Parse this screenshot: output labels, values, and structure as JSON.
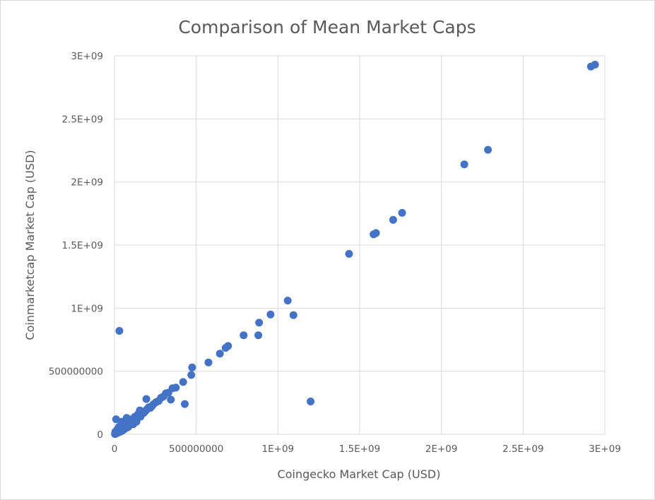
{
  "chart_data": {
    "type": "scatter",
    "title": "Comparison of Mean Market Caps",
    "xlabel": "Coingecko Market Cap (USD)",
    "ylabel": "Coinmarketcap Market Cap (USD)",
    "xlim": [
      0,
      3000000000
    ],
    "ylim": [
      0,
      3000000000
    ],
    "x_ticks": [
      {
        "value": 0,
        "label": "0"
      },
      {
        "value": 500000000,
        "label": "500000000"
      },
      {
        "value": 1000000000,
        "label": "1E+09"
      },
      {
        "value": 1500000000,
        "label": "1.5E+09"
      },
      {
        "value": 2000000000,
        "label": "2E+09"
      },
      {
        "value": 2500000000,
        "label": "2.5E+09"
      },
      {
        "value": 3000000000,
        "label": "3E+09"
      }
    ],
    "y_ticks": [
      {
        "value": 0,
        "label": "0"
      },
      {
        "value": 500000000,
        "label": "500000000"
      },
      {
        "value": 1000000000,
        "label": "1E+09"
      },
      {
        "value": 1500000000,
        "label": "1.5E+09"
      },
      {
        "value": 2000000000,
        "label": "2E+09"
      },
      {
        "value": 2500000000,
        "label": "2.5E+09"
      },
      {
        "value": 3000000000,
        "label": "3E+09"
      }
    ],
    "grid": true,
    "legend": "none",
    "marker_color": "#4472c4",
    "series": [
      {
        "points": [
          [
            2940000000,
            2930000000
          ],
          [
            2915000000,
            2915000000
          ],
          [
            2285000000,
            2255000000
          ],
          [
            2140000000,
            2140000000
          ],
          [
            1760000000,
            1755000000
          ],
          [
            1705000000,
            1700000000
          ],
          [
            1600000000,
            1595000000
          ],
          [
            1585000000,
            1585000000
          ],
          [
            1435000000,
            1430000000
          ],
          [
            1060000000,
            1060000000
          ],
          [
            955000000,
            950000000
          ],
          [
            1095000000,
            945000000
          ],
          [
            885000000,
            885000000
          ],
          [
            880000000,
            785000000
          ],
          [
            790000000,
            785000000
          ],
          [
            695000000,
            700000000
          ],
          [
            680000000,
            685000000
          ],
          [
            645000000,
            640000000
          ],
          [
            575000000,
            570000000
          ],
          [
            475000000,
            530000000
          ],
          [
            470000000,
            470000000
          ],
          [
            420000000,
            415000000
          ],
          [
            1200000000,
            260000000
          ],
          [
            430000000,
            240000000
          ],
          [
            30000000,
            820000000
          ],
          [
            375000000,
            370000000
          ],
          [
            355000000,
            365000000
          ],
          [
            345000000,
            275000000
          ],
          [
            330000000,
            330000000
          ],
          [
            315000000,
            325000000
          ],
          [
            300000000,
            300000000
          ],
          [
            285000000,
            290000000
          ],
          [
            270000000,
            265000000
          ],
          [
            255000000,
            255000000
          ],
          [
            240000000,
            240000000
          ],
          [
            230000000,
            225000000
          ],
          [
            195000000,
            280000000
          ],
          [
            200000000,
            200000000
          ],
          [
            190000000,
            185000000
          ],
          [
            175000000,
            180000000
          ],
          [
            165000000,
            170000000
          ],
          [
            155000000,
            190000000
          ],
          [
            150000000,
            150000000
          ],
          [
            140000000,
            130000000
          ],
          [
            130000000,
            120000000
          ],
          [
            120000000,
            110000000
          ],
          [
            110000000,
            100000000
          ],
          [
            100000000,
            90000000
          ],
          [
            95000000,
            75000000
          ],
          [
            85000000,
            60000000
          ],
          [
            75000000,
            130000000
          ],
          [
            70000000,
            110000000
          ],
          [
            65000000,
            50000000
          ],
          [
            60000000,
            40000000
          ],
          [
            55000000,
            80000000
          ],
          [
            50000000,
            30000000
          ],
          [
            45000000,
            100000000
          ],
          [
            40000000,
            60000000
          ],
          [
            35000000,
            20000000
          ],
          [
            30000000,
            45000000
          ],
          [
            25000000,
            15000000
          ],
          [
            20000000,
            30000000
          ],
          [
            15000000,
            10000000
          ],
          [
            10000000,
            120000000
          ],
          [
            8000000,
            5000000
          ],
          [
            5000000,
            20000000
          ],
          [
            3000000,
            2000000
          ],
          [
            12000000,
            8000000
          ],
          [
            18000000,
            40000000
          ],
          [
            28000000,
            60000000
          ],
          [
            42000000,
            25000000
          ],
          [
            52000000,
            70000000
          ],
          [
            62000000,
            90000000
          ],
          [
            80000000,
            55000000
          ],
          [
            90000000,
            100000000
          ],
          [
            105000000,
            120000000
          ],
          [
            115000000,
            80000000
          ],
          [
            125000000,
            140000000
          ],
          [
            135000000,
            100000000
          ],
          [
            145000000,
            160000000
          ],
          [
            160000000,
            140000000
          ],
          [
            180000000,
            170000000
          ],
          [
            210000000,
            215000000
          ],
          [
            220000000,
            210000000
          ]
        ]
      }
    ]
  }
}
